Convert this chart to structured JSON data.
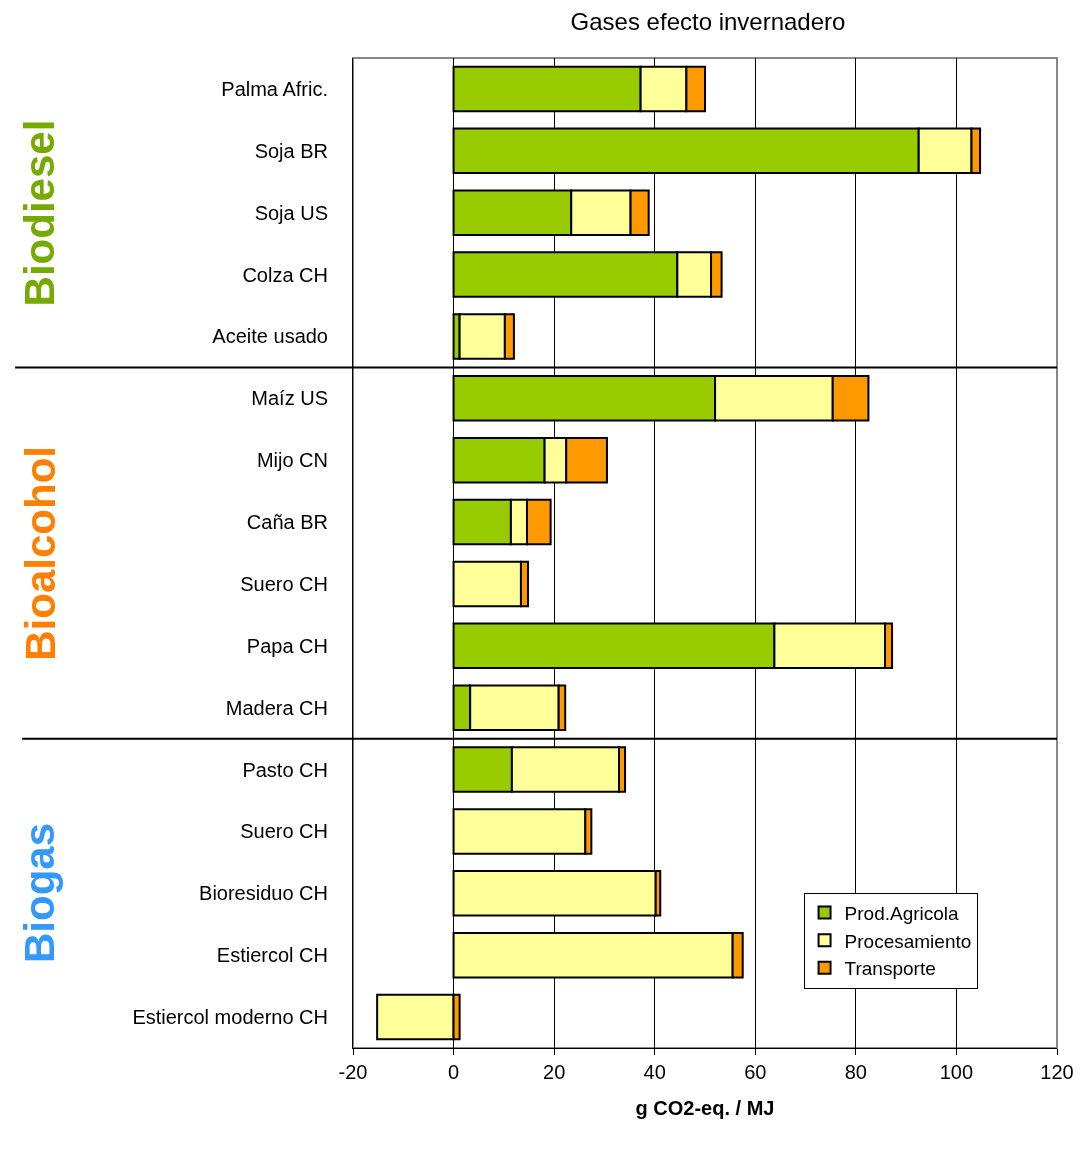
{
  "chart_data": {
    "type": "bar",
    "orientation": "horizontal",
    "stacked": true,
    "title": "Gases efecto invernadero",
    "xlabel": "g CO2-eq. / MJ",
    "categories": [
      "Palma Afric.",
      "Soja BR",
      "Soja US",
      "Colza CH",
      "Aceite usado",
      "Maíz US",
      "Mijo CN",
      "Caña BR",
      "Suero CH",
      "Papa CH",
      "Madera CH",
      "Pasto CH",
      "Suero CH",
      "Bioresiduo CH",
      "Estiercol CH",
      "Estiercol moderno CH"
    ],
    "series": [
      {
        "name": "Prod.Agricola",
        "color": "#99cc00",
        "values": [
          37.2,
          92.5,
          23.4,
          44.5,
          1.2,
          52.0,
          18.1,
          11.4,
          null,
          63.8,
          3.3,
          11.6,
          null,
          null,
          null,
          null
        ]
      },
      {
        "name": "Procesamiento",
        "color": "#ffff99",
        "values": [
          9.1,
          10.5,
          11.8,
          6.7,
          9.0,
          23.4,
          4.3,
          3.2,
          13.4,
          22.0,
          17.6,
          21.3,
          26.2,
          40.2,
          55.5,
          -15.2
        ]
      },
      {
        "name": "Transporte",
        "color": "#ff9900",
        "values": [
          3.7,
          1.7,
          3.6,
          2.1,
          1.8,
          7.1,
          8.1,
          4.7,
          1.4,
          1.4,
          1.3,
          1.2,
          1.2,
          0.9,
          2.0,
          1.2
        ]
      }
    ],
    "xlim": [
      -20,
      120
    ],
    "xticks": [
      -20,
      0,
      20,
      40,
      60,
      80,
      100,
      120
    ],
    "grid": "x",
    "legend": "bottom right",
    "annotations": [
      "Biodiesel",
      "Bioalcohol",
      "Biogas"
    ]
  }
}
